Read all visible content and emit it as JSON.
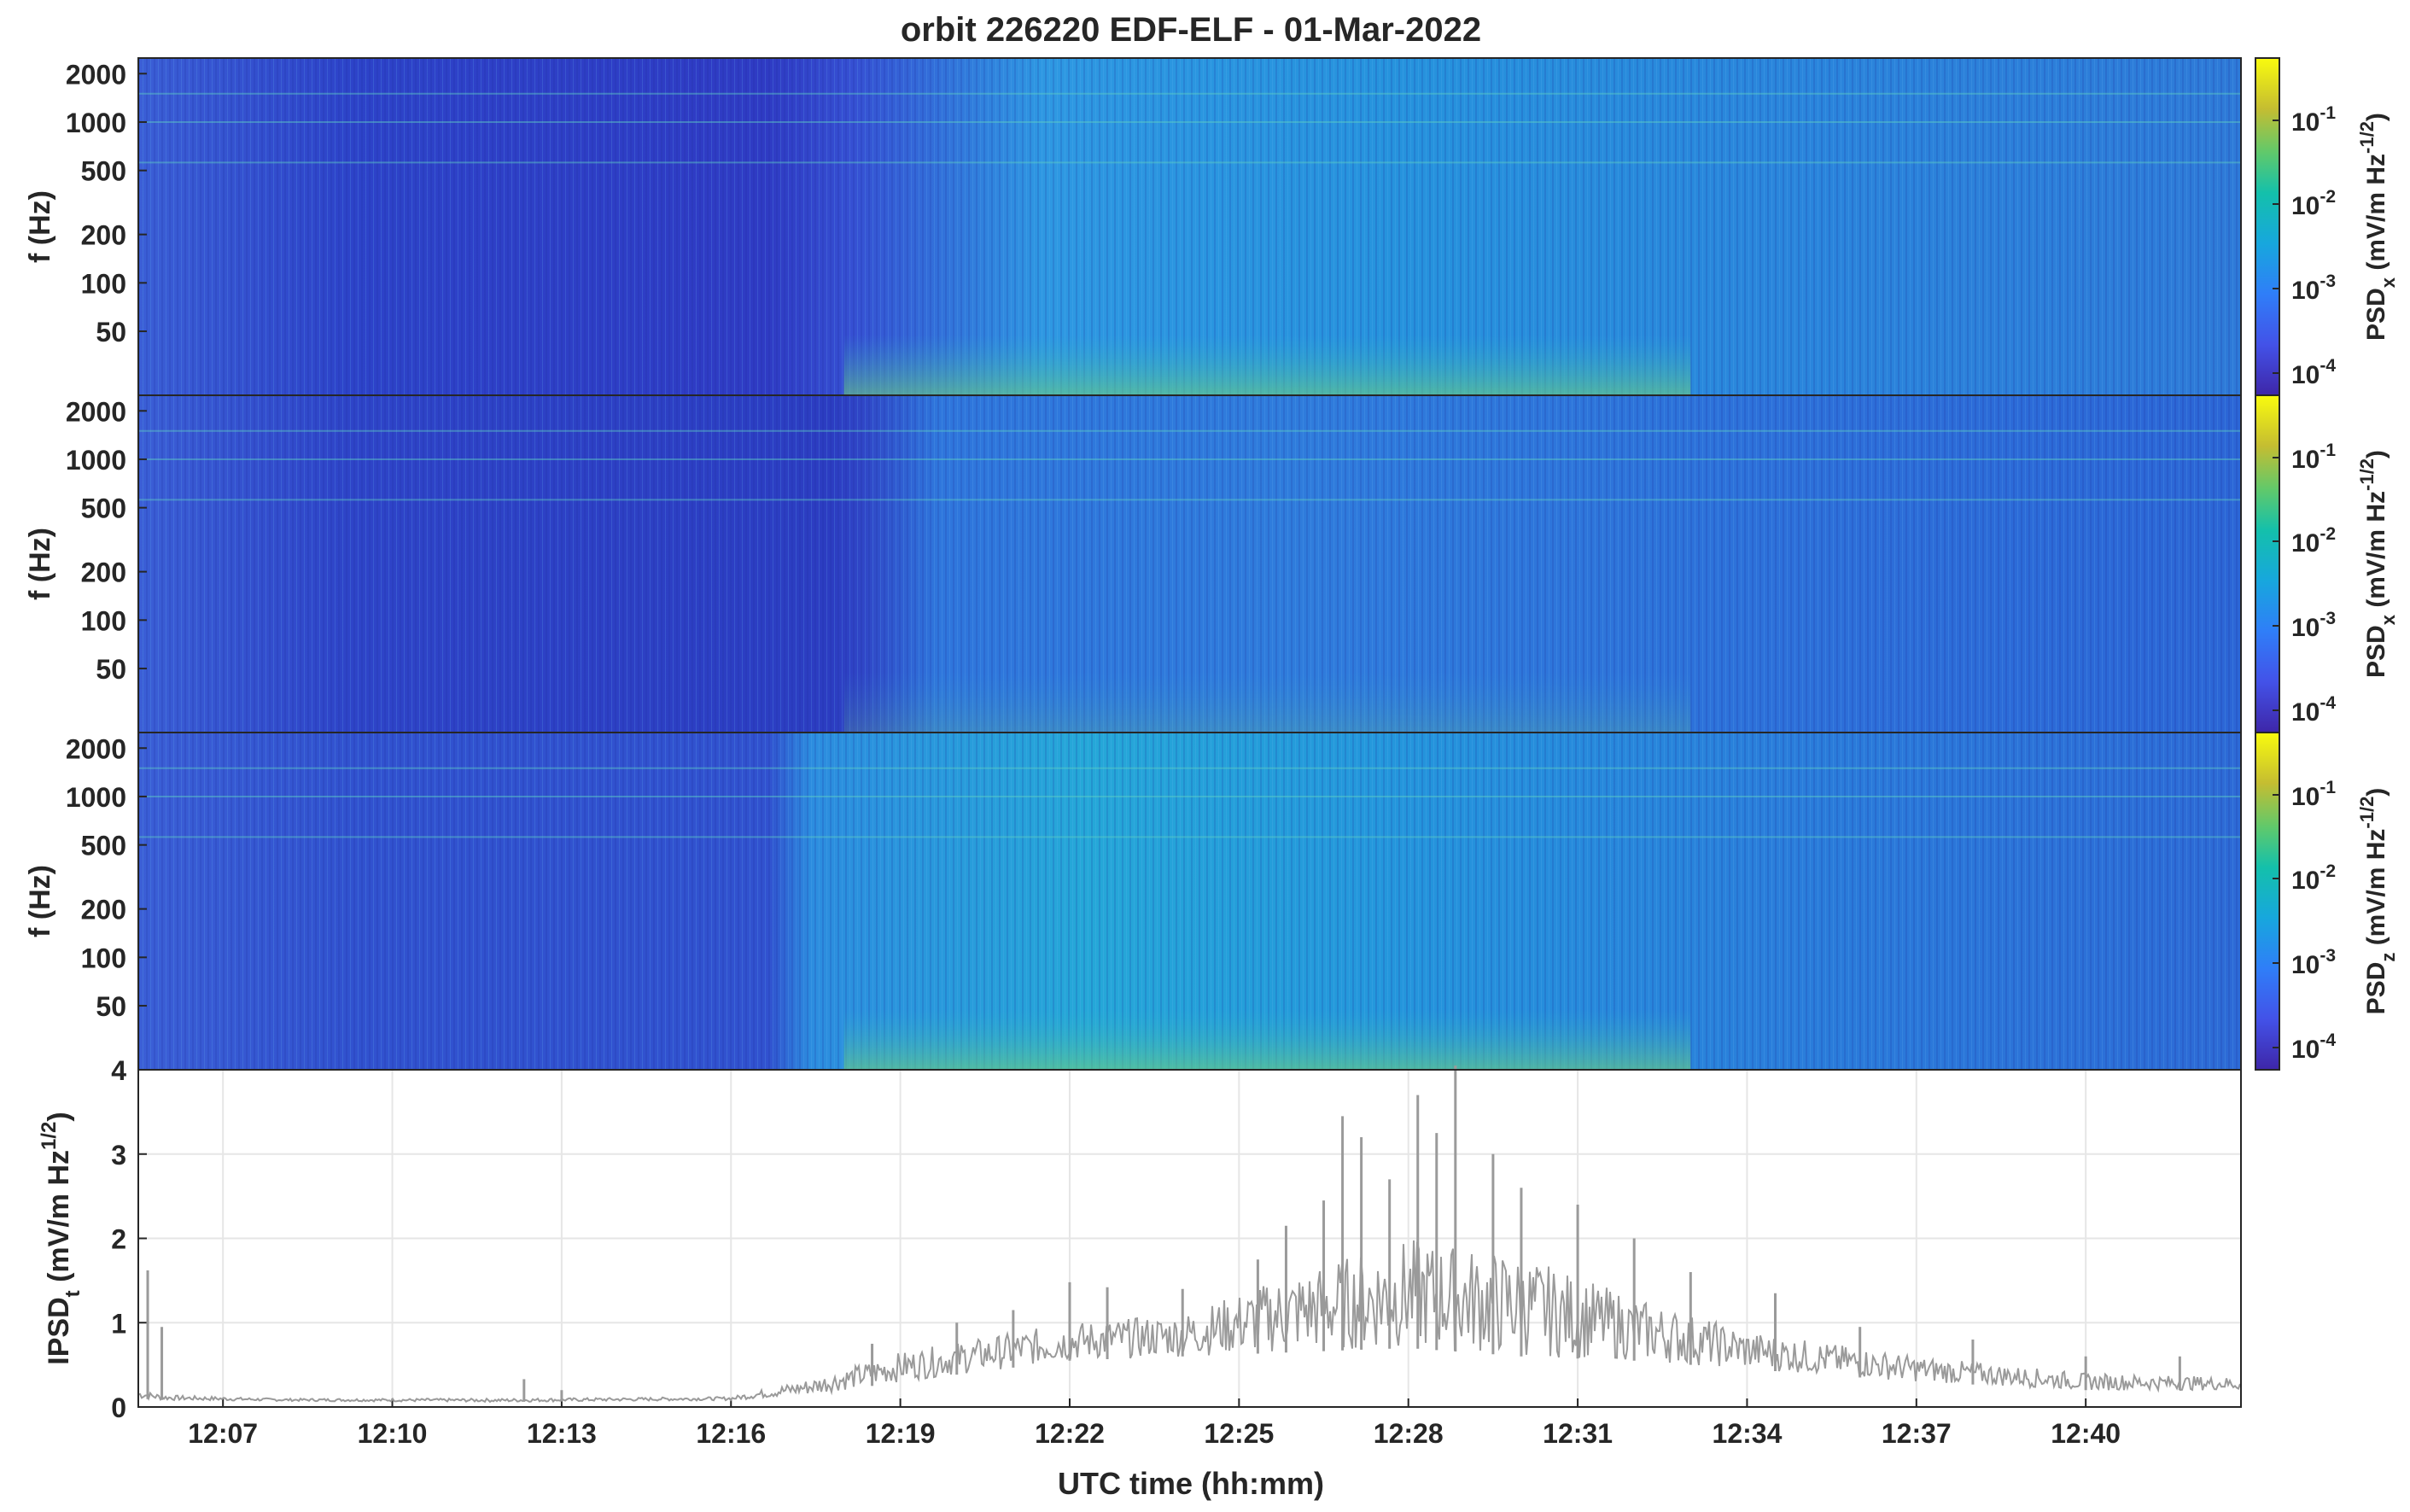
{
  "figure": {
    "title": "orbit 226220 EDF-ELF - 01-Mar-2022",
    "xlabel": "UTC time (hh:mm)"
  },
  "chart_data": [
    {
      "type": "heatmap",
      "panel": 1,
      "ylabel": "f (Hz)",
      "yscale": "log",
      "ylim": [
        20,
        2500
      ],
      "yticks": [
        "50",
        "100",
        "200",
        "500",
        "1000",
        "2000"
      ],
      "xlim": [
        "12:05:30",
        "12:42:45"
      ],
      "colorbar_label": {
        "base": "PSD",
        "sub": "x",
        "rest": " (mV/m Hz",
        "sup": "-1/2",
        "close": ")"
      },
      "colorbar_scale": "log",
      "colorbar_ticks": [
        {
          "base": "10",
          "exp": "-4"
        },
        {
          "base": "10",
          "exp": "-3"
        },
        {
          "base": "10",
          "exp": "-2"
        },
        {
          "base": "10",
          "exp": "-1"
        }
      ]
    },
    {
      "type": "heatmap",
      "panel": 2,
      "ylabel": "f (Hz)",
      "yscale": "log",
      "ylim": [
        20,
        2500
      ],
      "yticks": [
        "50",
        "100",
        "200",
        "500",
        "1000",
        "2000"
      ],
      "xlim": [
        "12:05:30",
        "12:42:45"
      ],
      "colorbar_label": {
        "base": "PSD",
        "sub": "x",
        "rest": " (mV/m Hz",
        "sup": "-1/2",
        "close": ")"
      },
      "colorbar_scale": "log",
      "colorbar_ticks": [
        {
          "base": "10",
          "exp": "-4"
        },
        {
          "base": "10",
          "exp": "-3"
        },
        {
          "base": "10",
          "exp": "-2"
        },
        {
          "base": "10",
          "exp": "-1"
        }
      ]
    },
    {
      "type": "heatmap",
      "panel": 3,
      "ylabel": "f (Hz)",
      "yscale": "log",
      "ylim": [
        20,
        2500
      ],
      "yticks": [
        "50",
        "100",
        "200",
        "500",
        "1000",
        "2000"
      ],
      "xlim": [
        "12:05:30",
        "12:42:45"
      ],
      "colorbar_label": {
        "base": "PSD",
        "sub": "z",
        "rest": " (mV/m Hz",
        "sup": "-1/2",
        "close": ")"
      },
      "colorbar_scale": "log",
      "colorbar_ticks": [
        {
          "base": "10",
          "exp": "-4"
        },
        {
          "base": "10",
          "exp": "-3"
        },
        {
          "base": "10",
          "exp": "-2"
        },
        {
          "base": "10",
          "exp": "-1"
        }
      ]
    },
    {
      "type": "line",
      "panel": 4,
      "ylabel": {
        "base": "IPSD",
        "sub": "t",
        "rest": " (mV/m Hz",
        "sup": "1/2",
        "close": ")"
      },
      "ylim": [
        0,
        4
      ],
      "yticks": [
        "0",
        "1",
        "2",
        "3",
        "4"
      ],
      "xlim": [
        "12:05:30",
        "12:42:45"
      ],
      "xticks": [
        "12:07",
        "12:10",
        "12:13",
        "12:16",
        "12:19",
        "12:22",
        "12:25",
        "12:28",
        "12:31",
        "12:34",
        "12:37",
        "12:40"
      ],
      "grid": true,
      "color": "#9a9a9a",
      "envelope": {
        "x": [
          "12:05:30",
          "12:06:00",
          "12:08:00",
          "12:12:00",
          "12:16:00",
          "12:17:30",
          "12:19:00",
          "12:22:00",
          "12:24:00",
          "12:26:00",
          "12:28:00",
          "12:30:00",
          "12:32:00",
          "12:34:00",
          "12:37:00",
          "12:40:00",
          "12:42:45"
        ],
        "low": [
          0.1,
          0.08,
          0.07,
          0.06,
          0.08,
          0.15,
          0.3,
          0.55,
          0.6,
          0.65,
          0.7,
          0.6,
          0.55,
          0.45,
          0.3,
          0.2,
          0.2
        ],
        "high": [
          0.2,
          0.14,
          0.1,
          0.1,
          0.12,
          0.35,
          0.65,
          1.0,
          1.1,
          1.6,
          2.0,
          1.8,
          1.3,
          0.9,
          0.6,
          0.4,
          0.35
        ]
      },
      "peaks": [
        {
          "x": "12:05:40",
          "y": 1.62
        },
        {
          "x": "12:05:55",
          "y": 0.95
        },
        {
          "x": "12:12:20",
          "y": 0.33
        },
        {
          "x": "12:13:00",
          "y": 0.2
        },
        {
          "x": "12:18:30",
          "y": 0.75
        },
        {
          "x": "12:20:00",
          "y": 1.0
        },
        {
          "x": "12:21:00",
          "y": 1.15
        },
        {
          "x": "12:22:00",
          "y": 1.48
        },
        {
          "x": "12:22:40",
          "y": 1.42
        },
        {
          "x": "12:24:00",
          "y": 1.4
        },
        {
          "x": "12:25:20",
          "y": 1.75
        },
        {
          "x": "12:25:50",
          "y": 2.15
        },
        {
          "x": "12:26:30",
          "y": 2.45
        },
        {
          "x": "12:26:50",
          "y": 3.45
        },
        {
          "x": "12:27:10",
          "y": 3.2
        },
        {
          "x": "12:27:40",
          "y": 2.7
        },
        {
          "x": "12:28:10",
          "y": 3.7
        },
        {
          "x": "12:28:30",
          "y": 3.25
        },
        {
          "x": "12:28:50",
          "y": 4.05
        },
        {
          "x": "12:29:30",
          "y": 3.0
        },
        {
          "x": "12:30:00",
          "y": 2.6
        },
        {
          "x": "12:31:00",
          "y": 2.4
        },
        {
          "x": "12:32:00",
          "y": 2.0
        },
        {
          "x": "12:33:00",
          "y": 1.6
        },
        {
          "x": "12:34:30",
          "y": 1.35
        },
        {
          "x": "12:36:00",
          "y": 0.95
        },
        {
          "x": "12:38:00",
          "y": 0.8
        },
        {
          "x": "12:40:00",
          "y": 0.6
        },
        {
          "x": "12:41:40",
          "y": 0.6
        }
      ]
    }
  ]
}
